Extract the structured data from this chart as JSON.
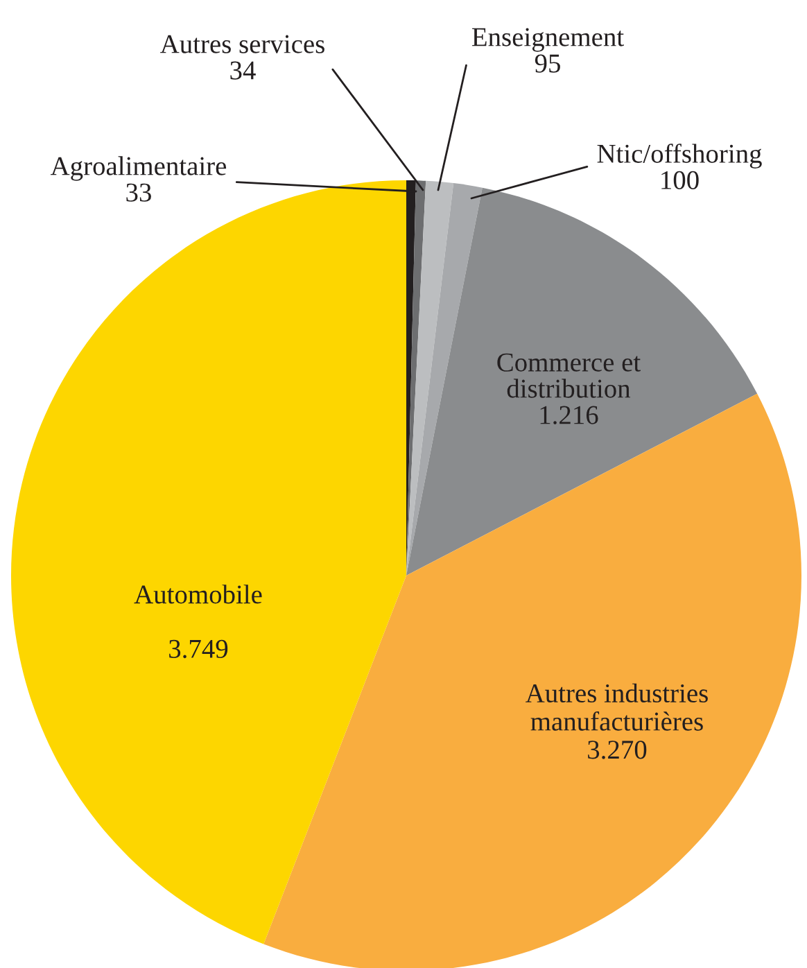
{
  "chart_data": {
    "type": "pie",
    "categories": [
      "Agroalimentaire",
      "Autres services",
      "Enseignement",
      "Ntic/offshoring",
      "Commerce et distribution",
      "Autres industries manufacturières",
      "Automobile"
    ],
    "values": [
      33,
      34,
      95,
      100,
      1216,
      3270,
      3749
    ],
    "value_labels": [
      "33",
      "34",
      "95",
      "100",
      "1.216",
      "3.270",
      "3.749"
    ],
    "colors": [
      "#231f20",
      "#6d6e70",
      "#bcbec0",
      "#a7a9ac",
      "#8a8c8e",
      "#f9ad3f",
      "#fdd600"
    ]
  }
}
